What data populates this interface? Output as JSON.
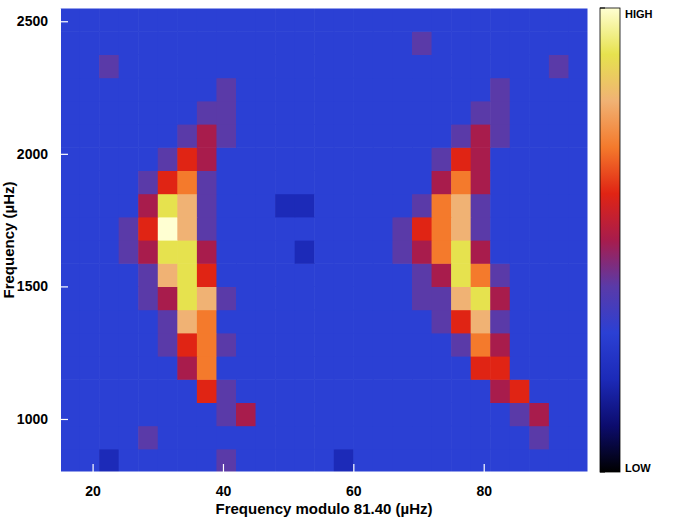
{
  "chart_data": {
    "type": "heatmap",
    "xlabel": "Frequency modulo 81.40 (µHz)",
    "ylabel": "Frequency (µHz)",
    "xlim": [
      15,
      96
    ],
    "ylim": [
      800,
      2550
    ],
    "xticks": [
      20,
      40,
      60,
      80
    ],
    "yticks": [
      1000,
      1500,
      2000,
      2500
    ],
    "x_edges": [
      15,
      18,
      21,
      24,
      27,
      30,
      33,
      36,
      39,
      42,
      45,
      48,
      51,
      54,
      57,
      60,
      63,
      66,
      69,
      72,
      75,
      78,
      81,
      84,
      87,
      90,
      93,
      96
    ],
    "y_edges": [
      800,
      887.5,
      975,
      1062.5,
      1150,
      1237.5,
      1325,
      1412.5,
      1500,
      1587.5,
      1675,
      1762.5,
      1850,
      1937.5,
      2025,
      2112.5,
      2200,
      2287.5,
      2375,
      2462.5,
      2550
    ],
    "z": [
      [
        3,
        3,
        2,
        3,
        3,
        3,
        3,
        3,
        4,
        3,
        3,
        3,
        3,
        3,
        2,
        3,
        3,
        3,
        3,
        3,
        3,
        3,
        3,
        3,
        3,
        3,
        3
      ],
      [
        3,
        3,
        3,
        3,
        4,
        3,
        3,
        3,
        3,
        3,
        3,
        3,
        3,
        3,
        3,
        3,
        3,
        3,
        3,
        3,
        3,
        3,
        3,
        3,
        4,
        3,
        3
      ],
      [
        3,
        3,
        3,
        3,
        3,
        3,
        3,
        3,
        4,
        5,
        3,
        3,
        3,
        3,
        3,
        3,
        3,
        3,
        3,
        3,
        3,
        3,
        3,
        4,
        5,
        3,
        3
      ],
      [
        3,
        3,
        3,
        3,
        3,
        3,
        3,
        6,
        4,
        3,
        3,
        3,
        3,
        3,
        3,
        3,
        3,
        3,
        3,
        3,
        3,
        3,
        5,
        6,
        3,
        3,
        3
      ],
      [
        3,
        3,
        3,
        3,
        3,
        3,
        5,
        7,
        3,
        3,
        3,
        3,
        3,
        3,
        3,
        3,
        3,
        3,
        3,
        3,
        3,
        6,
        6,
        3,
        3,
        3,
        3
      ],
      [
        3,
        3,
        3,
        3,
        3,
        4,
        6,
        7,
        4,
        3,
        3,
        3,
        3,
        3,
        3,
        3,
        3,
        3,
        3,
        3,
        4,
        7,
        5,
        3,
        3,
        3,
        3
      ],
      [
        3,
        3,
        3,
        3,
        3,
        4,
        8,
        7,
        3,
        3,
        3,
        3,
        3,
        3,
        3,
        3,
        3,
        3,
        3,
        4,
        6,
        8,
        4,
        3,
        3,
        3,
        3
      ],
      [
        3,
        3,
        3,
        3,
        4,
        5,
        9,
        8,
        4,
        3,
        3,
        3,
        3,
        3,
        3,
        3,
        3,
        3,
        4,
        4,
        8,
        9,
        5,
        3,
        3,
        3,
        3
      ],
      [
        3,
        3,
        3,
        3,
        4,
        8,
        9,
        6,
        3,
        3,
        3,
        3,
        3,
        3,
        3,
        3,
        3,
        3,
        4,
        5,
        9,
        7,
        4,
        3,
        3,
        3,
        3
      ],
      [
        3,
        3,
        3,
        4,
        5,
        9,
        9,
        5,
        3,
        3,
        3,
        3,
        2,
        3,
        3,
        3,
        3,
        4,
        5,
        7,
        9,
        5,
        3,
        3,
        3,
        3,
        3
      ],
      [
        3,
        3,
        3,
        4,
        6,
        10,
        8,
        4,
        3,
        3,
        3,
        3,
        3,
        3,
        3,
        3,
        3,
        4,
        6,
        7,
        8,
        4,
        3,
        3,
        3,
        3,
        3
      ],
      [
        3,
        3,
        3,
        3,
        5,
        9,
        8,
        4,
        3,
        3,
        3,
        2,
        2,
        3,
        3,
        3,
        3,
        3,
        4,
        7,
        8,
        4,
        3,
        3,
        3,
        3,
        3
      ],
      [
        3,
        3,
        3,
        3,
        4,
        6,
        7,
        4,
        3,
        3,
        3,
        3,
        3,
        3,
        3,
        3,
        3,
        3,
        3,
        5,
        7,
        5,
        3,
        3,
        3,
        3,
        3
      ],
      [
        3,
        3,
        3,
        3,
        3,
        4,
        6,
        5,
        3,
        3,
        3,
        3,
        3,
        3,
        3,
        3,
        3,
        3,
        3,
        4,
        6,
        5,
        3,
        3,
        3,
        3,
        3
      ],
      [
        3,
        3,
        3,
        3,
        3,
        3,
        4,
        5,
        4,
        3,
        3,
        3,
        3,
        3,
        3,
        3,
        3,
        3,
        3,
        3,
        4,
        5,
        4,
        3,
        3,
        3,
        3
      ],
      [
        3,
        3,
        3,
        3,
        3,
        3,
        3,
        4,
        4,
        3,
        3,
        3,
        3,
        3,
        3,
        3,
        3,
        3,
        3,
        3,
        3,
        4,
        4,
        3,
        3,
        3,
        3
      ],
      [
        3,
        3,
        3,
        3,
        3,
        3,
        3,
        3,
        4,
        3,
        3,
        3,
        3,
        3,
        3,
        3,
        3,
        3,
        3,
        3,
        3,
        3,
        4,
        3,
        3,
        3,
        3
      ],
      [
        3,
        3,
        4,
        3,
        3,
        3,
        3,
        3,
        3,
        3,
        3,
        3,
        3,
        3,
        3,
        3,
        3,
        3,
        3,
        3,
        3,
        3,
        3,
        3,
        3,
        4,
        3
      ],
      [
        3,
        3,
        3,
        3,
        3,
        3,
        3,
        3,
        3,
        3,
        3,
        3,
        3,
        3,
        3,
        3,
        3,
        3,
        4,
        3,
        3,
        3,
        3,
        3,
        3,
        3,
        3
      ],
      [
        3,
        3,
        3,
        3,
        3,
        3,
        3,
        3,
        3,
        3,
        3,
        3,
        3,
        3,
        3,
        3,
        3,
        3,
        3,
        3,
        3,
        3,
        3,
        3,
        3,
        3,
        3
      ]
    ],
    "colorbar": {
      "range": [
        0,
        10
      ],
      "ticks": [
        {
          "value": 0,
          "label": "LOW"
        },
        {
          "value": 10,
          "label": "HIGH"
        }
      ]
    }
  }
}
